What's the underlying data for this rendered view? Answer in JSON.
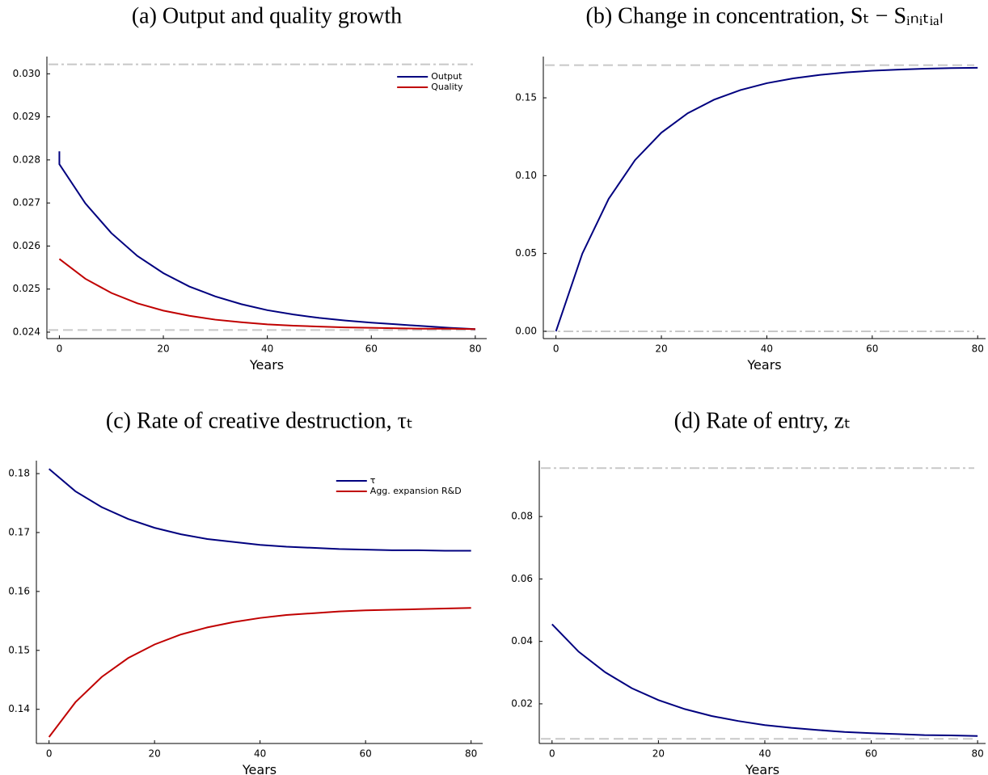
{
  "chart_data": [
    {
      "type": "line",
      "title": "(a) Output and quality growth",
      "x_label": "Years",
      "x": [
        0,
        0,
        5,
        10,
        15,
        20,
        25,
        30,
        35,
        40,
        45,
        50,
        55,
        60,
        65,
        70,
        75,
        80
      ],
      "series": [
        {
          "name": "Output",
          "color": "#00007f",
          "values": [
            0.0282,
            0.0279,
            0.02699,
            0.0263,
            0.02577,
            0.02537,
            0.02506,
            0.02483,
            0.02465,
            0.02451,
            0.02441,
            0.02433,
            0.02427,
            0.02422,
            0.02418,
            0.02414,
            0.0241,
            0.02407
          ]
        },
        {
          "name": "Quality",
          "color": "#c00000",
          "values": [
            null,
            0.0257,
            0.02524,
            0.02491,
            0.02467,
            0.0245,
            0.02438,
            0.02429,
            0.02423,
            0.02418,
            0.02415,
            0.02413,
            0.02411,
            0.0241,
            0.02409,
            0.02408,
            0.02408,
            0.02407
          ]
        }
      ],
      "hlines": [
        {
          "value": 0.03022,
          "style": "dashdot"
        },
        {
          "value": 0.02405,
          "style": "dashed"
        }
      ],
      "xlim": [
        -2.4,
        82.2
      ],
      "xticks": [
        0,
        20,
        40,
        60,
        80
      ],
      "ylim": [
        0.02385,
        0.0304
      ],
      "yticks": [
        {
          "value": 0.024,
          "label": "0.024"
        },
        {
          "value": 0.025,
          "label": "0.025"
        },
        0.026,
        0.027,
        0.028,
        0.029,
        {
          "value": 0.03,
          "label": "0.030"
        }
      ],
      "legend": "top-right"
    },
    {
      "type": "line",
      "title": "(b) Change in concentration, Sₜ − Sᵢₙᵢₜᵢₐₗ",
      "x_label": "Years",
      "x": [
        0,
        5,
        10,
        15,
        20,
        25,
        30,
        35,
        40,
        45,
        50,
        55,
        60,
        65,
        70,
        75,
        80
      ],
      "series": [
        {
          "color": "#00007f",
          "values": [
            0,
            0.0499,
            0.0851,
            0.11,
            0.1276,
            0.1401,
            0.1488,
            0.155,
            0.1594,
            0.1625,
            0.1647,
            0.1663,
            0.1674,
            0.1681,
            0.1687,
            0.1691,
            0.1693
          ]
        }
      ],
      "hlines": [
        {
          "value": 0.171,
          "style": "dashed"
        },
        {
          "value": 0,
          "style": "dashdot"
        }
      ],
      "xlim": [
        -2.4,
        81.5
      ],
      "xticks": [
        0,
        20,
        40,
        60,
        80
      ],
      "ylim": [
        -0.0047,
        0.1765
      ],
      "yticks": [
        {
          "value": 0,
          "label": "0.00"
        },
        0.05,
        {
          "value": 0.1,
          "label": "0.10"
        },
        0.15
      ]
    },
    {
      "type": "line",
      "title": "(c) Rate of creative destruction, τₜ",
      "x_label": "Years",
      "x": [
        0,
        5,
        10,
        15,
        20,
        25,
        30,
        35,
        40,
        45,
        50,
        55,
        60,
        65,
        70,
        75,
        80
      ],
      "series": [
        {
          "name": "τ",
          "color": "#00007f",
          "values": [
            0.1808,
            0.177,
            0.1743,
            0.1723,
            0.1708,
            0.1697,
            0.1689,
            0.1684,
            0.1679,
            0.1676,
            0.1674,
            0.1672,
            0.1671,
            0.167,
            0.167,
            0.1669,
            0.1669
          ]
        },
        {
          "name": "Agg. expansion R&D",
          "color": "#c00000",
          "values": [
            0.1353,
            0.1412,
            0.1455,
            0.1487,
            0.151,
            0.1527,
            0.1539,
            0.1548,
            0.1555,
            0.156,
            0.1563,
            0.1566,
            0.1568,
            0.1569,
            0.157,
            0.1571,
            0.1572
          ]
        }
      ],
      "xlim": [
        -2.4,
        82.2
      ],
      "xticks": [
        0,
        20,
        40,
        60,
        80
      ],
      "ylim": [
        0.1342,
        0.1822
      ],
      "yticks": [
        0.14,
        0.15,
        0.16,
        0.17,
        0.18
      ],
      "legend": "top-right"
    },
    {
      "type": "line",
      "title": "(d) Rate of entry, zₜ",
      "x_label": "Years",
      "x": [
        0,
        5,
        10,
        15,
        20,
        25,
        30,
        35,
        40,
        45,
        50,
        55,
        60,
        65,
        70,
        75,
        80
      ],
      "series": [
        {
          "color": "#00007f",
          "values": [
            0.0455,
            0.0367,
            0.0301,
            0.025,
            0.0212,
            0.0183,
            0.0161,
            0.0145,
            0.0132,
            0.0123,
            0.0116,
            0.011,
            0.0106,
            0.0103,
            0.01,
            0.0099,
            0.0097
          ]
        }
      ],
      "hlines": [
        {
          "value": 0.0955,
          "style": "dashdot"
        },
        {
          "value": 0.0088,
          "style": "dashed"
        }
      ],
      "xlim": [
        -2.4,
        81.5
      ],
      "xticks": [
        0,
        20,
        40,
        60,
        80
      ],
      "ylim": [
        0.0073,
        0.0979
      ],
      "yticks": [
        0.02,
        0.04,
        0.06,
        0.08
      ]
    }
  ]
}
